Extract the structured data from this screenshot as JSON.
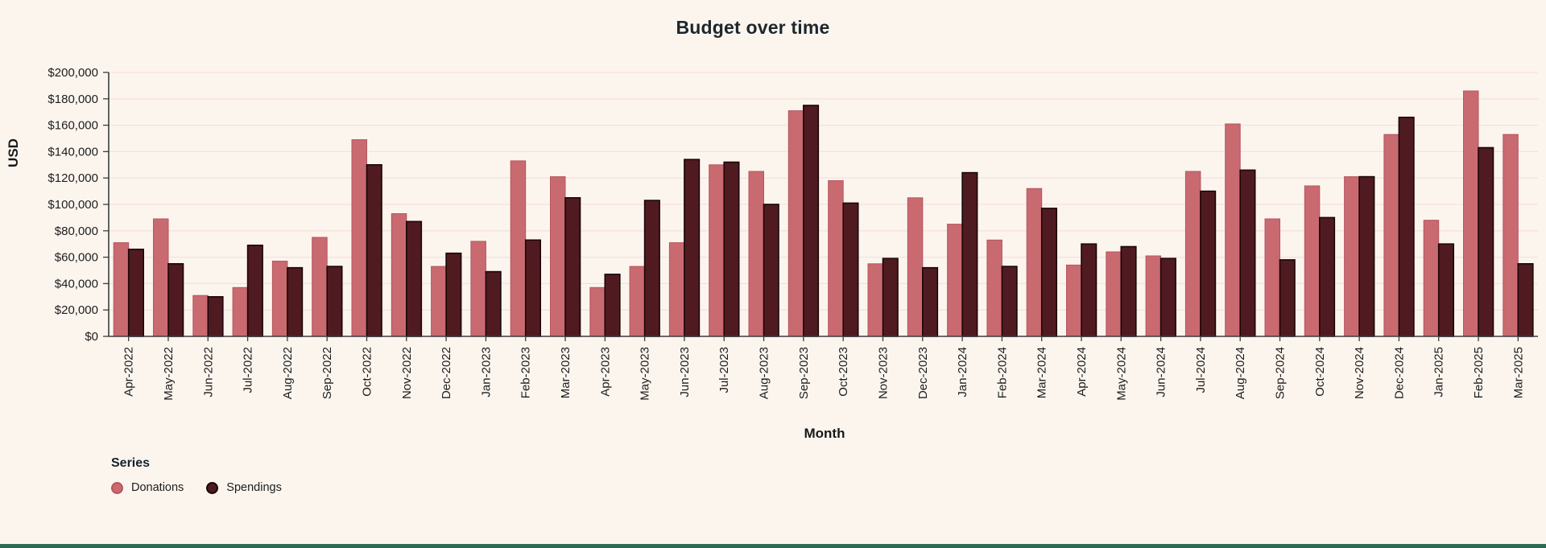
{
  "chart_data": {
    "type": "bar",
    "title": "Budget over time",
    "xlabel": "Month",
    "ylabel": "USD",
    "ylim": [
      0,
      200000
    ],
    "ytick_step": 20000,
    "ytick_labels": [
      "$0",
      "$20,000",
      "$40,000",
      "$60,000",
      "$80,000",
      "$100,000",
      "$120,000",
      "$140,000",
      "$160,000",
      "$180,000",
      "$200,000"
    ],
    "grid": true,
    "legend": {
      "title": "Series",
      "position": "bottom-left"
    },
    "categories": [
      "Apr-2022",
      "May-2022",
      "Jun-2022",
      "Jul-2022",
      "Aug-2022",
      "Sep-2022",
      "Oct-2022",
      "Nov-2022",
      "Dec-2022",
      "Jan-2023",
      "Feb-2023",
      "Mar-2023",
      "Apr-2023",
      "May-2023",
      "Jun-2023",
      "Jul-2023",
      "Aug-2023",
      "Sep-2023",
      "Oct-2023",
      "Nov-2023",
      "Dec-2023",
      "Jan-2024",
      "Feb-2024",
      "Mar-2024",
      "Apr-2024",
      "May-2024",
      "Jun-2024",
      "Jul-2024",
      "Aug-2024",
      "Sep-2024",
      "Oct-2024",
      "Nov-2024",
      "Dec-2024",
      "Jan-2025",
      "Feb-2025",
      "Mar-2025"
    ],
    "series": [
      {
        "name": "Donations",
        "color": "#c96a70",
        "stroke": "#b6555d",
        "values": [
          71000,
          89000,
          31000,
          37000,
          57000,
          75000,
          149000,
          93000,
          53000,
          72000,
          133000,
          121000,
          37000,
          53000,
          71000,
          130000,
          125000,
          171000,
          118000,
          55000,
          105000,
          85000,
          73000,
          112000,
          54000,
          64000,
          61000,
          125000,
          161000,
          89000,
          114000,
          121000,
          153000,
          88000,
          186000,
          153000
        ]
      },
      {
        "name": "Spendings",
        "color": "#4f1b21",
        "stroke": "#1c0608",
        "values": [
          66000,
          55000,
          30000,
          69000,
          52000,
          53000,
          130000,
          87000,
          63000,
          49000,
          73000,
          105000,
          47000,
          103000,
          134000,
          132000,
          100000,
          175000,
          101000,
          59000,
          52000,
          124000,
          53000,
          97000,
          70000,
          68000,
          59000,
          110000,
          126000,
          58000,
          90000,
          121000,
          166000,
          70000,
          143000,
          55000
        ]
      }
    ],
    "colors": {
      "background": "#fcf5ee",
      "gridline": "#f5e1dd",
      "axis": "#3d3d3d",
      "text": "#1d1d1d",
      "bottom_accent": "#2e6b55"
    }
  }
}
